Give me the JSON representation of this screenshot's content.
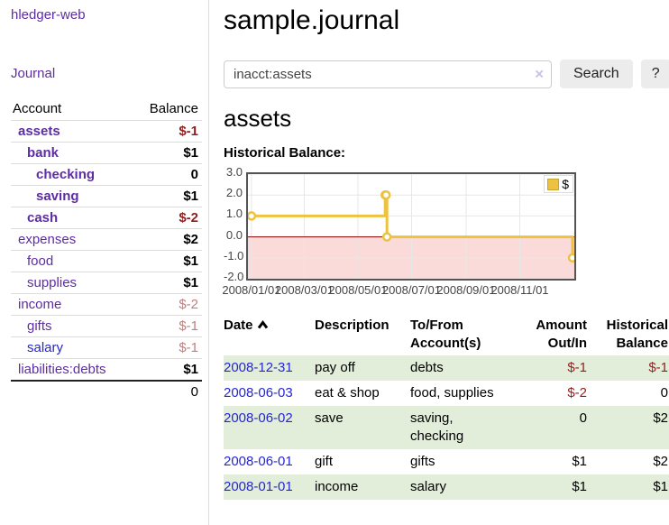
{
  "sidebar": {
    "app_title": "hledger-web",
    "nav": [
      {
        "label": "Journal"
      }
    ],
    "accounts_table": {
      "headers": [
        "Account",
        "Balance"
      ],
      "rows": [
        {
          "name": "assets",
          "balance": "$-1",
          "level": 0,
          "name_bold": true,
          "balance_bold": true,
          "name_style": "purple",
          "balance_style": "neg-strong"
        },
        {
          "name": "bank",
          "balance": "$1",
          "level": 1,
          "name_bold": true,
          "balance_bold": true,
          "name_style": "purple",
          "balance_style": "plain"
        },
        {
          "name": "checking",
          "balance": "0",
          "level": 2,
          "name_bold": true,
          "balance_bold": true,
          "name_style": "purple",
          "balance_style": "plain"
        },
        {
          "name": "saving",
          "balance": "$1",
          "level": 2,
          "name_bold": true,
          "balance_bold": true,
          "name_style": "purple",
          "balance_style": "plain"
        },
        {
          "name": "cash",
          "balance": "$-2",
          "level": 1,
          "name_bold": true,
          "balance_bold": true,
          "name_style": "purple",
          "balance_style": "neg-strong"
        },
        {
          "name": "expenses",
          "balance": "$2",
          "level": 0,
          "name_bold": false,
          "balance_bold": true,
          "name_style": "purple",
          "balance_style": "plain"
        },
        {
          "name": "food",
          "balance": "$1",
          "level": 1,
          "name_bold": false,
          "balance_bold": true,
          "name_style": "purple",
          "balance_style": "plain"
        },
        {
          "name": "supplies",
          "balance": "$1",
          "level": 1,
          "name_bold": false,
          "balance_bold": true,
          "name_style": "purple",
          "balance_style": "plain"
        },
        {
          "name": "income",
          "balance": "$-2",
          "level": 0,
          "name_bold": false,
          "balance_bold": false,
          "name_style": "purple",
          "balance_style": "neg-soft"
        },
        {
          "name": "gifts",
          "balance": "$-1",
          "level": 1,
          "name_bold": false,
          "balance_bold": false,
          "name_style": "purple",
          "balance_style": "neg-soft"
        },
        {
          "name": "salary",
          "balance": "$-1",
          "level": 1,
          "name_bold": false,
          "balance_bold": false,
          "name_style": "blue",
          "balance_style": "neg-soft"
        },
        {
          "name": "liabilities:debts",
          "balance": "$1",
          "level": 0,
          "name_bold": false,
          "balance_bold": true,
          "name_style": "purple",
          "balance_style": "plain"
        }
      ],
      "total": "0"
    }
  },
  "main": {
    "title": "sample.journal",
    "search": {
      "value": "inacct:assets",
      "clear_icon": "×",
      "button": "Search",
      "help_button": "?"
    },
    "account_heading": "assets",
    "chart_label": "Historical Balance:",
    "register": {
      "columns": [
        {
          "label": "Date",
          "align": "left",
          "sortable": true
        },
        {
          "label": "Description",
          "align": "left"
        },
        {
          "label": "To/From Account(s)",
          "align": "left"
        },
        {
          "label": "Amount Out/In",
          "align": "right"
        },
        {
          "label": "Historical Balance",
          "align": "right"
        }
      ],
      "rows": [
        {
          "date": "2008-12-31",
          "description": "pay off",
          "accounts": "debts",
          "amount": "$-1",
          "balance": "$-1",
          "highlight": true
        },
        {
          "date": "2008-06-03",
          "description": "eat & shop",
          "accounts": "food, supplies",
          "amount": "$-2",
          "balance": "0",
          "highlight": false
        },
        {
          "date": "2008-06-02",
          "description": "save",
          "accounts": "saving, checking",
          "amount": "0",
          "balance": "$2",
          "highlight": true
        },
        {
          "date": "2008-06-01",
          "description": "gift",
          "accounts": "gifts",
          "amount": "$1",
          "balance": "$2",
          "highlight": false
        },
        {
          "date": "2008-01-01",
          "description": "income",
          "accounts": "salary",
          "amount": "$1",
          "balance": "$1",
          "highlight": true
        }
      ]
    }
  },
  "chart_data": {
    "type": "line",
    "step": true,
    "title": "Historical Balance:",
    "ylim": [
      -2,
      3
    ],
    "y_ticks": [
      "3.0",
      "2.0",
      "1.0",
      "0.0",
      "-1.0",
      "-2.0"
    ],
    "x_ticks": [
      {
        "label": "2008/01/01",
        "date": "2008-01-01"
      },
      {
        "label": "2008/03/01",
        "date": "2008-03-01"
      },
      {
        "label": "2008/05/01",
        "date": "2008-05-01"
      },
      {
        "label": "2008/07/01",
        "date": "2008-07-01"
      },
      {
        "label": "2008/09/01",
        "date": "2008-09-01"
      },
      {
        "label": "2008/11/01",
        "date": "2008-11-01"
      }
    ],
    "x_domain": [
      "2007-12-28",
      "2009-01-02"
    ],
    "series": [
      {
        "name": "$",
        "color": "#edc240",
        "points": [
          [
            "2008-01-01",
            1
          ],
          [
            "2008-06-01",
            2
          ],
          [
            "2008-06-02",
            2
          ],
          [
            "2008-06-03",
            0
          ],
          [
            "2008-12-31",
            -1
          ]
        ]
      }
    ],
    "grid_color": "#e7e7e7",
    "border_color": "#545454",
    "negative_region_color": "#fbdada",
    "zero_line_color": "#8b0000",
    "legend": {
      "label": "$",
      "swatch_color": "#edc240",
      "position": "top-right"
    }
  }
}
